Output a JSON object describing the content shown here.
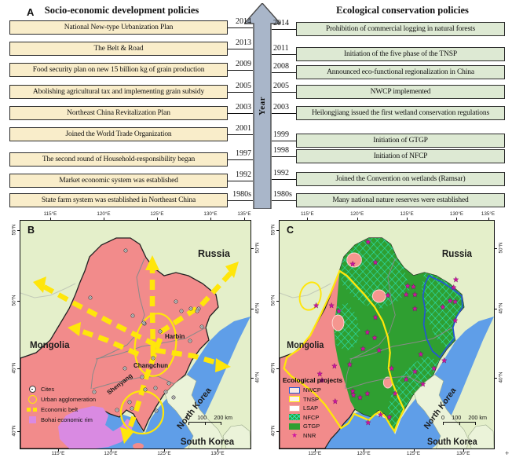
{
  "figure": {
    "panel_a_label": "A",
    "panel_b_label": "B",
    "panel_c_label": "C",
    "artifact": "+"
  },
  "panel_a": {
    "left_title": "Socio-economic development policies",
    "right_title": "Ecological conservation policies",
    "arrow_label": "Year",
    "left_items": [
      {
        "year": "2014",
        "label": "National New-type Urbanization Plan"
      },
      {
        "year": "2013",
        "label": "The Belt & Road"
      },
      {
        "year": "2009",
        "label": "Food security plan on new 15 billion kg of grain production"
      },
      {
        "year": "2005",
        "label": "Abolishing agricultural tax and implementing grain subsidy"
      },
      {
        "year": "2003",
        "label": "Northeast China Revitalization Plan"
      },
      {
        "year": "2001",
        "label": "Joined the World Trade Organization"
      },
      {
        "year": "1997",
        "label": "The second round of Household-responsibility began"
      },
      {
        "year": "1992",
        "label": "Market economic system was established"
      },
      {
        "year": "1980s",
        "label": "State farm system was established in Northeast China"
      }
    ],
    "right_items": [
      {
        "year": "2014",
        "label": "Prohibition of commercial logging in natural forests"
      },
      {
        "year": "2011",
        "label": "Initiation of the five phase of the TNSP"
      },
      {
        "year": "2008",
        "label": "Announced eco-functional regionalization in China"
      },
      {
        "year": "2005",
        "label": "NWCP implemented"
      },
      {
        "year": "2003",
        "label": "Heilongjiang issued the first wetland conservation regulations"
      },
      {
        "year": "1999",
        "label": "Initiation of GTGP"
      },
      {
        "year": "1998",
        "label": "Initiation of NFCP"
      },
      {
        "year": "1992",
        "label": "Joined the Convention on wetlands (Ramsar)"
      },
      {
        "year": "1980s",
        "label": "Many national nature reserves were established"
      }
    ]
  },
  "maps": {
    "top_ticks": [
      "115°E",
      "120°E",
      "125°E",
      "130°E",
      "135°E"
    ],
    "bottom_ticks": [
      "115°E",
      "120°E",
      "125°E",
      "130°E"
    ],
    "left_ticks": [
      "55°N",
      "50°N",
      "45°N",
      "40°N"
    ],
    "right_ticks": [
      "50°N",
      "45°N",
      "40°N"
    ],
    "countries": {
      "russia": "Russia",
      "mongolia": "Mongolia",
      "north_korea": "North Korea",
      "south_korea": "South Korea"
    },
    "scale": {
      "t0": "0",
      "t1": "100",
      "t2": "200 km"
    },
    "map_b": {
      "cities": {
        "harbin": "Harbin",
        "changchun": "Changchun",
        "shenyang": "Shenyang"
      },
      "legend": [
        {
          "label": "Cites"
        },
        {
          "label": "Urban agglomeration"
        },
        {
          "label": "Economic belt"
        },
        {
          "label": "Bohai economic rim"
        }
      ]
    },
    "map_c": {
      "legend_title": "Ecological projects",
      "legend": [
        {
          "label": "NWCP"
        },
        {
          "label": "TNSP"
        },
        {
          "label": "LSAP"
        },
        {
          "label": "NFCP"
        },
        {
          "label": "GTGP"
        },
        {
          "label": "NNR"
        }
      ]
    }
  },
  "colors": {
    "socio_box": "#f9edca",
    "eco_box": "#dde9d3",
    "arrow_fill": "#a9b6c9",
    "land": "#e4efca",
    "sea": "#5f9ee8",
    "pink": "#f28b8b",
    "violet": "#d98ae2",
    "belt": "#ffe60a",
    "korea": "#ebf3d9",
    "gtgp": "#2f9f31",
    "nfcp": "#2be6c0",
    "nwcp": "#2456d2",
    "tnsp": "#ffe60a",
    "lsap": "#f5968f",
    "nnr": "#cd13a0"
  }
}
